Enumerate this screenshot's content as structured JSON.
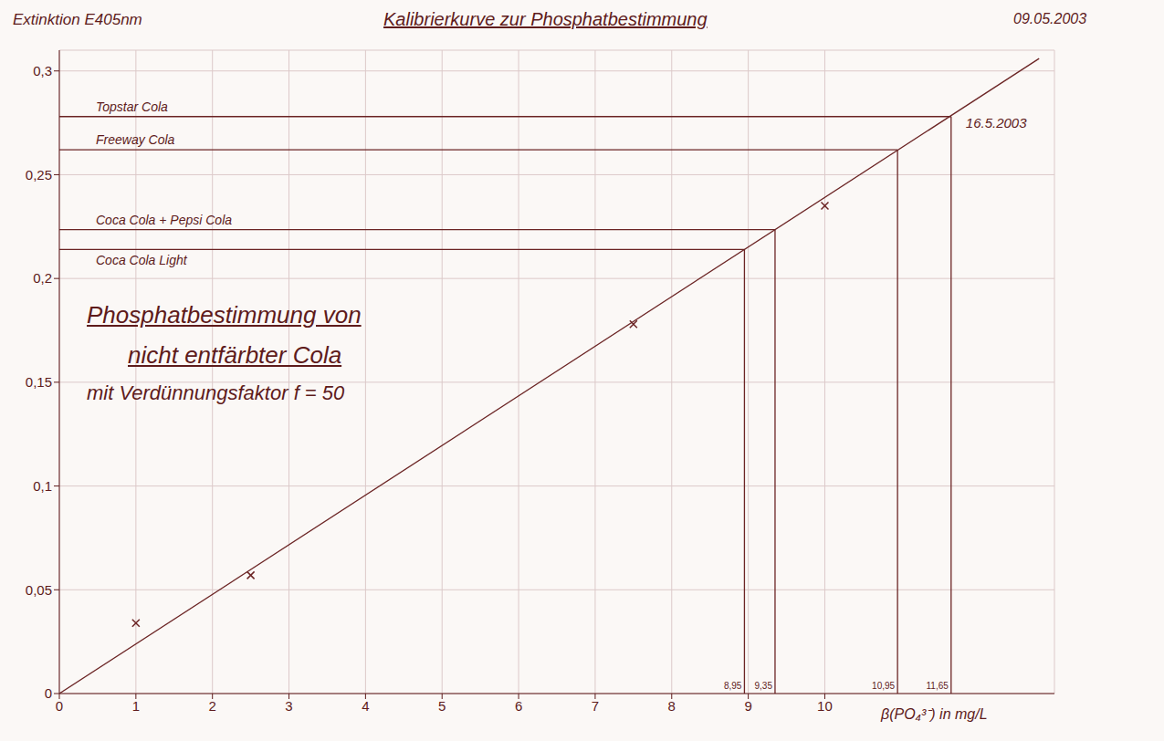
{
  "chart_data": {
    "type": "scatter",
    "title": "Kalibrierkurve zur Phosphatbestimmung",
    "date": "09.05.2003",
    "x_label": "β(PO₄³⁻) in mg/L",
    "y_label": "Extinktion E405nm",
    "x": [
      1,
      2.5,
      7.5,
      10
    ],
    "values": [
      0.034,
      0.057,
      0.178,
      0.235
    ],
    "marker": "x",
    "color": "#6b2424",
    "fit_line": {
      "x": [
        0,
        12.8
      ],
      "values": [
        0,
        0.306
      ]
    },
    "readings": [
      {
        "name": "Topstar Cola",
        "x": 11.65,
        "x_label": "11,65",
        "y": 0.278
      },
      {
        "name": "Freeway Cola",
        "x": 10.95,
        "x_label": "10,95",
        "y": 0.262
      },
      {
        "name": "Coca Cola + Pepsi Cola",
        "x": 9.35,
        "x_label": "9,35",
        "y": 0.2235
      },
      {
        "name": "Coca Cola Light",
        "x": 8.95,
        "x_label": "8,95",
        "y": 0.214
      }
    ],
    "reading_date": "16.5.2003",
    "annotations": [
      "Phosphatbestimmung von",
      "nicht entfärbter Cola",
      "mit Verdünnungsfaktor f = 50"
    ],
    "xlim": [
      0,
      13
    ],
    "ylim": [
      0,
      0.31
    ],
    "xticks": [
      0,
      1,
      2,
      3,
      4,
      5,
      6,
      7,
      8,
      9,
      10
    ],
    "yticks": [
      0,
      {
        "value": 0.05,
        "label": "0,05"
      },
      {
        "value": 0.1,
        "label": "0,1"
      },
      {
        "value": 0.15,
        "label": "0,15"
      },
      {
        "value": 0.2,
        "label": "0,2"
      },
      {
        "value": 0.25,
        "label": "0,25"
      },
      {
        "value": 0.3,
        "label": "0,3"
      }
    ],
    "grid": true
  }
}
